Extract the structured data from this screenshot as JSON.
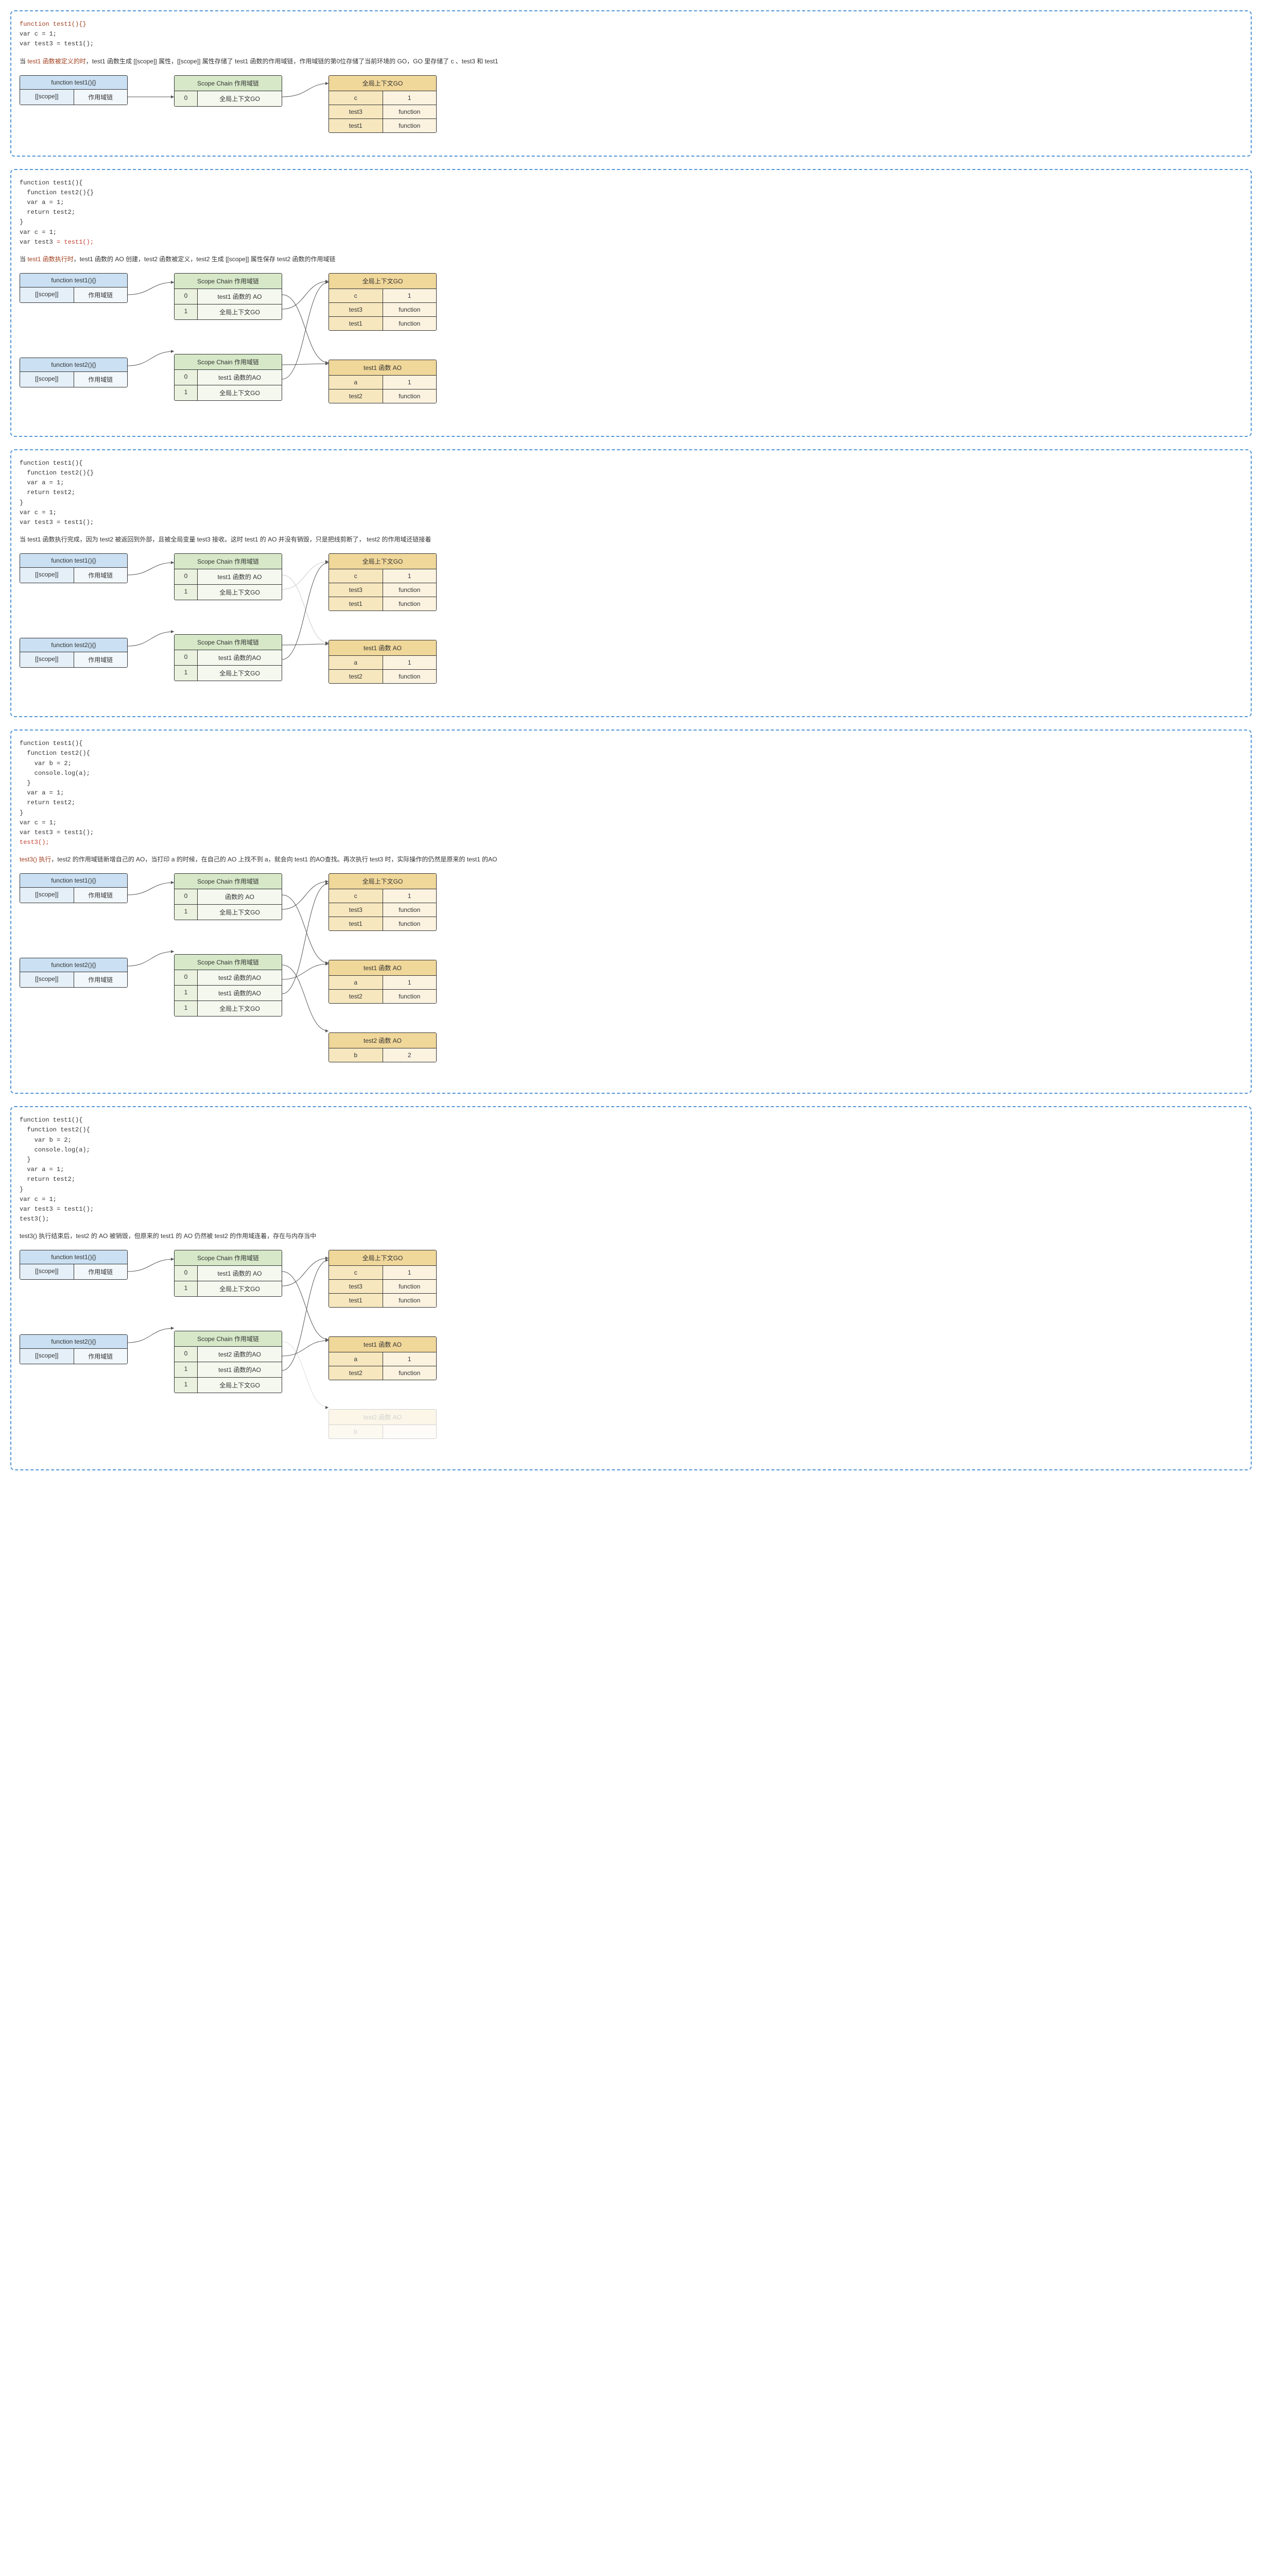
{
  "colors": {
    "panel_border": "#5295d6",
    "func_header": "#cbe1f3",
    "func_c1": "#e4eff8",
    "func_c2": "#f2f7fb",
    "scope_header": "#d6e8c8",
    "scope_c1": "#eaf2df",
    "scope_c2": "#f4f8ef",
    "go_header": "#f0d79a",
    "go_c1": "#f6e7bf",
    "go_c2": "#fbf3e0",
    "line": "#555555",
    "emph": "#a04020"
  },
  "labels": {
    "func_test1": "function test1(){}",
    "func_test2": "function test2(){}",
    "scope_attr": "[[scope]]",
    "scope_chain_col": "作用域链",
    "scope_chain_header": "Scope Chain 作用域链",
    "global_go_header": "全局上下文GO",
    "test1_ao_header": "test1 函数 AO",
    "test2_ao_header": "test2 函数 AO",
    "global_go_val": "全局上下文GO",
    "test1_ao_val": "test1 函数的 AO",
    "test1_ao_val2": "test1 函数的AO",
    "test2_ao_val": "test2 函数的AO"
  },
  "go_rows": [
    [
      "c",
      "1"
    ],
    [
      "test3",
      "function"
    ],
    [
      "test1",
      "function"
    ]
  ],
  "test1_ao_rows": [
    [
      "a",
      "1"
    ],
    [
      "test2",
      "function"
    ]
  ],
  "test2_ao_rows": [
    [
      "b",
      "2"
    ]
  ],
  "panel1": {
    "code_html": "<span class='emph-kw'>function test1(){}</span>\nvar c = 1;\nvar test3 = test1();",
    "desc_html": "当 <span class='emph-kw'>test1 函数被定义的时</span>，test1 函数生成 [[scope]] 属性，[[scope]] 属性存储了 test1 函数的作用域链，作用域链的第0位存储了当前环境的 GO，GO 里存储了 c 、test3 和 test1"
  },
  "panel2": {
    "code_html": "function test1(){\n  function test2(){}\n  var a = 1;\n  return test2;\n}\nvar c = 1;\nvar test3 <span class='emph-call'>= test1();</span>",
    "desc_html": "当<span class='emph-kw'> test1 函数执行时</span>，test1 函数的 AO 创建，test2 函数被定义，test2 生成 [[scope]] 属性保存 test2 函数的作用域链"
  },
  "panel3": {
    "code_html": "function test1(){\n  function test2(){}\n  var a = 1;\n  return test2;\n}\nvar c = 1;\nvar test3 = test1();",
    "desc": "当 test1 函数执行完成，因为 test2 被返回到外部，且被全局变量 test3 接收。这时 test1 的 AO 并没有销毁，只是把线剪断了， test2 的作用域还链接着"
  },
  "panel4": {
    "code_html": "function test1(){\n  function test2(){\n    var b = 2;\n    console.log(a);\n  }\n  var a = 1;\n  return test2;\n}\nvar c = 1;\nvar test3 = test1();\n<span class='emph-call'>test3();</span>",
    "desc_html": "<span class='emph-kw'>test3() 执行</span>，test2 的作用域链新增自己的 AO，当打印 a 的时候，在自己的 AO 上找不到 a，就会向 test1 的AO查找。再次执行 test3 时，实际操作的仍然是原来的 test1 的AO"
  },
  "panel5": {
    "code_html": "function test1(){\n  function test2(){\n    var b = 2;\n    console.log(a);\n  }\n  var a = 1;\n  return test2;\n}\nvar c = 1;\nvar test3 = test1();\ntest3();",
    "desc": "test3() 执行结束后，test2 的 AO 被销毁，但原来的 test1 的 AO 仍然被 test2 的作用域连着，存在与内存当中"
  }
}
